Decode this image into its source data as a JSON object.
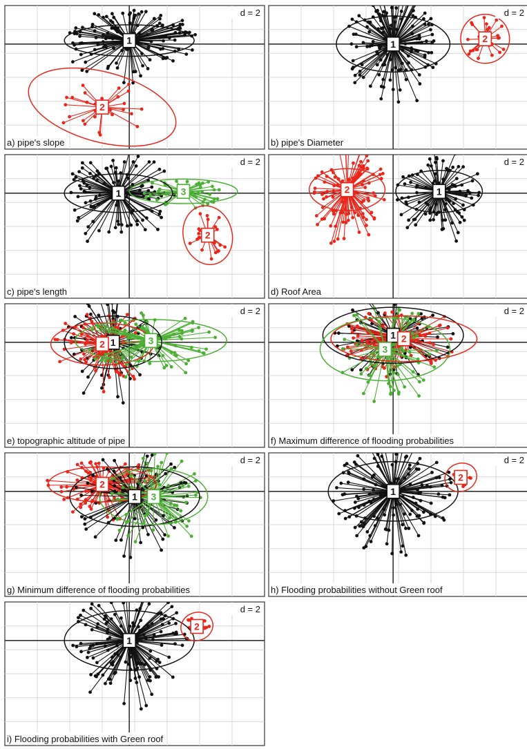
{
  "colors": {
    "1": "#111111",
    "2": "#e8261b",
    "3": "#4caf35"
  },
  "chart_data": [
    {
      "type": "scatter",
      "subtype": "class-star-plot",
      "scale_label": "d = 2",
      "caption": "a) pipe's slope",
      "classes": [
        {
          "label": "1",
          "color": "black",
          "center": [
            0,
            0.1
          ],
          "ellipse": [
            1.2,
            0.45,
            0
          ],
          "n_points": 130,
          "spread": [
            1.6,
            1.2
          ]
        },
        {
          "label": "2",
          "color": "red",
          "center": [
            -0.5,
            -1.8
          ],
          "ellipse": [
            1.4,
            1.0,
            -15
          ],
          "n_points": 28,
          "spread": [
            1.0,
            1.2
          ]
        }
      ]
    },
    {
      "type": "scatter",
      "subtype": "class-star-plot",
      "scale_label": "d = 2",
      "caption": "b) pipe's Diameter",
      "classes": [
        {
          "label": "1",
          "color": "black",
          "center": [
            0,
            0
          ],
          "ellipse": [
            1.05,
            0.8,
            0
          ],
          "n_points": 140,
          "spread": [
            1.1,
            1.9
          ]
        },
        {
          "label": "2",
          "color": "red",
          "center": [
            1.7,
            0.15
          ],
          "ellipse": [
            0.45,
            0.7,
            15
          ],
          "n_points": 25,
          "spread": [
            0.5,
            0.9
          ]
        }
      ]
    },
    {
      "type": "scatter",
      "subtype": "class-star-plot",
      "scale_label": "d = 2",
      "caption": "c) pipe's length",
      "classes": [
        {
          "label": "1",
          "color": "black",
          "center": [
            -0.2,
            0
          ],
          "ellipse": [
            1.0,
            0.55,
            0
          ],
          "n_points": 110,
          "spread": [
            1.3,
            1.6
          ]
        },
        {
          "label": "3",
          "color": "green",
          "center": [
            1.0,
            0.05
          ],
          "ellipse": [
            1.0,
            0.35,
            0
          ],
          "n_points": 45,
          "spread": [
            1.0,
            0.5
          ]
        },
        {
          "label": "2",
          "color": "red",
          "center": [
            1.45,
            -1.2
          ],
          "ellipse": [
            0.45,
            0.85,
            15
          ],
          "n_points": 22,
          "spread": [
            0.45,
            0.9
          ]
        }
      ]
    },
    {
      "type": "scatter",
      "subtype": "class-star-plot",
      "scale_label": "d = 2",
      "caption": "d) Roof Area",
      "classes": [
        {
          "label": "2",
          "color": "red",
          "center": [
            -0.85,
            0.1
          ],
          "ellipse": [
            0.7,
            0.6,
            0
          ],
          "n_points": 110,
          "spread": [
            0.9,
            1.6
          ]
        },
        {
          "label": "1",
          "color": "black",
          "center": [
            0.85,
            0.05
          ],
          "ellipse": [
            0.8,
            0.6,
            0
          ],
          "n_points": 100,
          "spread": [
            1.0,
            1.6
          ]
        }
      ]
    },
    {
      "type": "scatter",
      "subtype": "class-star-plot",
      "scale_label": "d = 2",
      "caption": "e) topographic altitude of pipe",
      "classes": [
        {
          "label": "1",
          "color": "black",
          "center": [
            -0.3,
            0.0
          ],
          "ellipse": [
            0.9,
            0.75,
            0
          ],
          "n_points": 70,
          "spread": [
            1.1,
            1.9
          ]
        },
        {
          "label": "2",
          "color": "red",
          "center": [
            -0.5,
            -0.05
          ],
          "ellipse": [
            0.95,
            0.6,
            0
          ],
          "n_points": 70,
          "spread": [
            1.2,
            1.3
          ]
        },
        {
          "label": "3",
          "color": "green",
          "center": [
            0.4,
            0.05
          ],
          "ellipse": [
            1.4,
            0.6,
            0
          ],
          "n_points": 80,
          "spread": [
            1.5,
            1.1
          ]
        }
      ]
    },
    {
      "type": "scatter",
      "subtype": "class-star-plot",
      "scale_label": "d = 2",
      "caption": "f) Maximum difference of flooding probabilities",
      "classes": [
        {
          "label": "1",
          "color": "black",
          "center": [
            0,
            0.2
          ],
          "ellipse": [
            1.3,
            0.8,
            0
          ],
          "n_points": 70,
          "spread": [
            1.4,
            1.7
          ]
        },
        {
          "label": "2",
          "color": "red",
          "center": [
            0.2,
            0.1
          ],
          "ellipse": [
            1.35,
            0.65,
            0
          ],
          "n_points": 80,
          "spread": [
            1.5,
            1.2
          ]
        },
        {
          "label": "3",
          "color": "green",
          "center": [
            -0.15,
            -0.2
          ],
          "ellipse": [
            1.2,
            0.9,
            0
          ],
          "n_points": 70,
          "spread": [
            1.3,
            1.7
          ]
        }
      ]
    },
    {
      "type": "scatter",
      "subtype": "class-star-plot",
      "scale_label": "d = 2",
      "caption": "g) Minimum difference of flooding probabilities",
      "classes": [
        {
          "label": "2",
          "color": "red",
          "center": [
            -0.5,
            0.2
          ],
          "ellipse": [
            1.0,
            0.5,
            0
          ],
          "n_points": 90,
          "spread": [
            1.3,
            1.0
          ]
        },
        {
          "label": "1",
          "color": "black",
          "center": [
            0.1,
            -0.15
          ],
          "ellipse": [
            1.2,
            0.85,
            0
          ],
          "n_points": 80,
          "spread": [
            1.4,
            1.8
          ]
        },
        {
          "label": "3",
          "color": "green",
          "center": [
            0.45,
            -0.15
          ],
          "ellipse": [
            1.0,
            0.8,
            0
          ],
          "n_points": 60,
          "spread": [
            1.1,
            1.8
          ]
        }
      ]
    },
    {
      "type": "scatter",
      "subtype": "class-star-plot",
      "scale_label": "d = 2",
      "caption": "h) Flooding probabilities without Green roof",
      "classes": [
        {
          "label": "1",
          "color": "black",
          "center": [
            0,
            0
          ],
          "ellipse": [
            1.2,
            0.85,
            0
          ],
          "n_points": 150,
          "spread": [
            1.4,
            1.9
          ]
        },
        {
          "label": "2",
          "color": "red",
          "center": [
            1.25,
            0.4
          ],
          "ellipse": [
            0.3,
            0.4,
            20
          ],
          "n_points": 10,
          "spread": [
            0.3,
            0.35
          ]
        }
      ]
    },
    {
      "type": "scatter",
      "subtype": "class-star-plot",
      "scale_label": "d = 2",
      "caption": "i) Flooding probabilities with Green roof",
      "classes": [
        {
          "label": "1",
          "color": "black",
          "center": [
            0,
            0
          ],
          "ellipse": [
            1.2,
            0.85,
            0
          ],
          "n_points": 150,
          "spread": [
            1.4,
            1.9
          ]
        },
        {
          "label": "2",
          "color": "red",
          "center": [
            1.25,
            0.4
          ],
          "ellipse": [
            0.3,
            0.4,
            20
          ],
          "n_points": 10,
          "spread": [
            0.3,
            0.35
          ]
        }
      ]
    }
  ]
}
